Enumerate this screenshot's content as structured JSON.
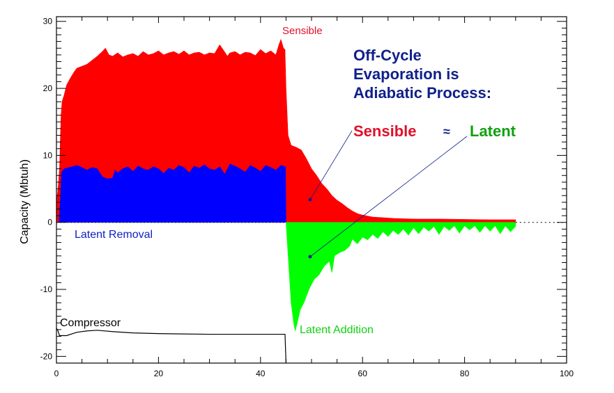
{
  "chart_data": {
    "type": "area",
    "title": "",
    "xlabel": "",
    "ylabel": "Capacity (Mbtuh)",
    "xlim": [
      0,
      100
    ],
    "ylim": [
      -21,
      30.7
    ],
    "xticks": [
      0,
      20,
      40,
      60,
      80,
      100
    ],
    "yticks": [
      -20,
      -10,
      0,
      10,
      20,
      30
    ],
    "grid": false,
    "legend": "none",
    "zero_line": "dotted",
    "series": [
      {
        "name": "Sensible",
        "color": "#ff0000",
        "points": [
          [
            0,
            3
          ],
          [
            0.3,
            5
          ],
          [
            0.6,
            8
          ],
          [
            0.9,
            16
          ],
          [
            1.1,
            18
          ],
          [
            1.5,
            19
          ],
          [
            2,
            20.5
          ],
          [
            2.7,
            21.5
          ],
          [
            3.5,
            22.5
          ],
          [
            4,
            23
          ],
          [
            5,
            23.3
          ],
          [
            6,
            23.6
          ],
          [
            7,
            24.2
          ],
          [
            8,
            24.8
          ],
          [
            9,
            25.5
          ],
          [
            9.6,
            26
          ],
          [
            10.3,
            25
          ],
          [
            11,
            24.8
          ],
          [
            12,
            25.3
          ],
          [
            13,
            24.7
          ],
          [
            14,
            25
          ],
          [
            15,
            25.2
          ],
          [
            16,
            24.8
          ],
          [
            17,
            25.5
          ],
          [
            18,
            25
          ],
          [
            19,
            25.2
          ],
          [
            20,
            25.6
          ],
          [
            21,
            25
          ],
          [
            22,
            25.3
          ],
          [
            23,
            25.5
          ],
          [
            24,
            25.1
          ],
          [
            25,
            25.6
          ],
          [
            26,
            25
          ],
          [
            27,
            25.3
          ],
          [
            28,
            25.4
          ],
          [
            29,
            25
          ],
          [
            30,
            25.3
          ],
          [
            31,
            25.2
          ],
          [
            32,
            26.5
          ],
          [
            33,
            25.4
          ],
          [
            33.5,
            24.8
          ],
          [
            34,
            25.3
          ],
          [
            35,
            25.5
          ],
          [
            36,
            25
          ],
          [
            37,
            25.4
          ],
          [
            38,
            25.3
          ],
          [
            39,
            24.9
          ],
          [
            40,
            25.8
          ],
          [
            41,
            25.2
          ],
          [
            42,
            25.6
          ],
          [
            43,
            25
          ],
          [
            43.6,
            26.5
          ],
          [
            44,
            27.3
          ],
          [
            44.5,
            26
          ],
          [
            44.8,
            25.8
          ],
          [
            45,
            20
          ],
          [
            45.4,
            13
          ],
          [
            46,
            11.5
          ],
          [
            47,
            11.2
          ],
          [
            48,
            10.8
          ],
          [
            49,
            9.5
          ],
          [
            50,
            8
          ],
          [
            51,
            7
          ],
          [
            52,
            5.8
          ],
          [
            53,
            5
          ],
          [
            54,
            4
          ],
          [
            55,
            3.3
          ],
          [
            56,
            2.8
          ],
          [
            57,
            2.2
          ],
          [
            58,
            1.7
          ],
          [
            59,
            1.3
          ],
          [
            60,
            1.1
          ],
          [
            62,
            0.8
          ],
          [
            64,
            0.7
          ],
          [
            66,
            0.6
          ],
          [
            70,
            0.5
          ],
          [
            75,
            0.5
          ],
          [
            80,
            0.45
          ],
          [
            85,
            0.4
          ],
          [
            90,
            0.4
          ]
        ]
      },
      {
        "name": "Latent Removal",
        "color": "#0000ff",
        "points": [
          [
            0.5,
            0
          ],
          [
            0.8,
            4
          ],
          [
            1,
            7.5
          ],
          [
            1.5,
            8
          ],
          [
            3,
            8.3
          ],
          [
            4,
            8.5
          ],
          [
            5,
            8.2
          ],
          [
            6,
            7.8
          ],
          [
            7,
            8.2
          ],
          [
            8,
            8
          ],
          [
            9,
            6.8
          ],
          [
            10,
            6.5
          ],
          [
            11,
            6.6
          ],
          [
            11.5,
            7.8
          ],
          [
            12,
            7.4
          ],
          [
            13,
            8
          ],
          [
            14,
            8.3
          ],
          [
            15,
            7.6
          ],
          [
            16,
            8.4
          ],
          [
            17,
            8
          ],
          [
            18,
            7.8
          ],
          [
            19,
            8.3
          ],
          [
            20,
            8
          ],
          [
            21,
            7.3
          ],
          [
            22,
            8.1
          ],
          [
            23,
            7.8
          ],
          [
            24,
            8.5
          ],
          [
            25,
            8.2
          ],
          [
            26,
            7.4
          ],
          [
            27,
            8.4
          ],
          [
            28,
            8.1
          ],
          [
            29,
            8.6
          ],
          [
            30,
            8
          ],
          [
            31,
            7.8
          ],
          [
            32,
            8.3
          ],
          [
            33,
            7.2
          ],
          [
            34,
            8.7
          ],
          [
            35,
            8.4
          ],
          [
            36,
            8
          ],
          [
            37,
            7.5
          ],
          [
            38,
            8.5
          ],
          [
            39,
            8.1
          ],
          [
            40,
            7.6
          ],
          [
            41,
            8.5
          ],
          [
            42,
            8.2
          ],
          [
            43,
            7.8
          ],
          [
            44,
            8.5
          ],
          [
            44.9,
            8.3
          ],
          [
            45,
            0
          ]
        ]
      },
      {
        "name": "Latent Addition",
        "color": "#00ff00",
        "points": [
          [
            45,
            0
          ],
          [
            45.5,
            -6
          ],
          [
            46,
            -12
          ],
          [
            46.5,
            -15
          ],
          [
            46.8,
            -16.2
          ],
          [
            47.2,
            -15
          ],
          [
            47.8,
            -13
          ],
          [
            48.5,
            -12
          ],
          [
            49.5,
            -10
          ],
          [
            50.5,
            -8.5
          ],
          [
            51.5,
            -7.8
          ],
          [
            52.5,
            -6.5
          ],
          [
            53.5,
            -5.8
          ],
          [
            54,
            -7.5
          ],
          [
            54.5,
            -5
          ],
          [
            55.5,
            -4.5
          ],
          [
            56.5,
            -4.2
          ],
          [
            57.5,
            -3.5
          ],
          [
            58,
            -2.5
          ],
          [
            59,
            -3.2
          ],
          [
            60,
            -2.2
          ],
          [
            61,
            -2.6
          ],
          [
            62,
            -1.8
          ],
          [
            63,
            -2.4
          ],
          [
            64,
            -1.4
          ],
          [
            65,
            -2.1
          ],
          [
            66,
            -1.2
          ],
          [
            67,
            -1.8
          ],
          [
            68,
            -1.0
          ],
          [
            69,
            -1.9
          ],
          [
            70,
            -0.8
          ],
          [
            71,
            -1.7
          ],
          [
            72,
            -0.7
          ],
          [
            73,
            -1.3
          ],
          [
            74,
            -0.6
          ],
          [
            75,
            -1.8
          ],
          [
            76,
            -0.6
          ],
          [
            77,
            -1.2
          ],
          [
            78,
            -0.5
          ],
          [
            79,
            -1.6
          ],
          [
            80,
            -0.5
          ],
          [
            81,
            -1.1
          ],
          [
            82,
            -0.5
          ],
          [
            83,
            -1.5
          ],
          [
            84,
            -0.5
          ],
          [
            85,
            -1.3
          ],
          [
            86,
            -0.5
          ],
          [
            87,
            -1.7
          ],
          [
            88,
            -0.5
          ],
          [
            89,
            -1.4
          ],
          [
            90,
            -0.6
          ],
          [
            90,
            0
          ]
        ]
      },
      {
        "name": "Compressor",
        "color": "#000000",
        "line": true,
        "points": [
          [
            0,
            -15.8
          ],
          [
            0.3,
            -16.2
          ],
          [
            0.6,
            -16.9
          ],
          [
            2,
            -16.9
          ],
          [
            4,
            -16.4
          ],
          [
            6,
            -16.2
          ],
          [
            8,
            -16.1
          ],
          [
            11,
            -16.3
          ],
          [
            15,
            -16.5
          ],
          [
            20,
            -16.6
          ],
          [
            30,
            -16.7
          ],
          [
            40,
            -16.7
          ],
          [
            44.8,
            -16.7
          ],
          [
            45,
            -21
          ]
        ]
      }
    ],
    "annotations": {
      "sensible_label": "Sensible",
      "latent_removal_label": "Latent Removal",
      "compressor_label": "Compressor",
      "latent_addition_label": "Latent Addition",
      "headline_line1": "Off-Cycle",
      "headline_line2": "Evaporation is",
      "headline_line3": "Adiabatic Process:",
      "compare_sensible": "Sensible",
      "compare_symbol": "≈",
      "compare_latent": "Latent"
    },
    "colors": {
      "headline": "#10208a",
      "sensible_text": "#e0102a",
      "latent_text": "#10a010",
      "latent_removal_text": "#1020c0",
      "latent_addition_text": "#10d010"
    }
  }
}
